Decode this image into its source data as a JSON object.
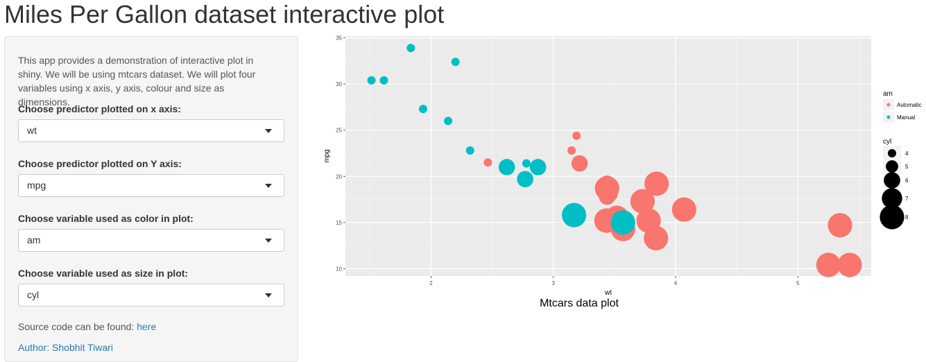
{
  "page": {
    "title": "Miles Per Gallon dataset interactive plot"
  },
  "sidebar": {
    "intro": "This app provides a demonstration of interactive plot in shiny. We will be using mtcars dataset. We will plot four variables using x axis, y axis, colour and size as dimensions.",
    "controls": [
      {
        "label": "Choose predictor plotted on x axis:",
        "value": "wt"
      },
      {
        "label": "Choose predictor plotted on Y axis:",
        "value": "mpg"
      },
      {
        "label": "Choose variable used as color in plot:",
        "value": "am"
      },
      {
        "label": "Choose variable used as size in plot:",
        "value": "cyl"
      }
    ],
    "source_text": "Source code can be found:",
    "source_link": "here",
    "author": "Author: Shobhit Tiwari"
  },
  "colors": {
    "automatic": "#F8766D",
    "manual": "#00BFC4",
    "panel": "#EBEBEB",
    "link": "#2a7ab0"
  },
  "chart_data": {
    "type": "scatter",
    "title": "Mtcars data plot",
    "xlabel": "wt",
    "ylabel": "mpg",
    "xlim": [
      1.3,
      5.6
    ],
    "ylim": [
      9.2,
      35.2
    ],
    "xticks": [
      "2",
      "3",
      "4",
      "5"
    ],
    "yticks": [
      "10",
      "15",
      "20",
      "25",
      "30",
      "35"
    ],
    "grid": true,
    "legend_placement": "right",
    "color_legend": {
      "title": "am",
      "entries": [
        "Automatic",
        "Manual"
      ]
    },
    "size_legend": {
      "title": "cyl",
      "entries": [
        "4",
        "5",
        "6",
        "7",
        "8"
      ]
    },
    "series": [
      {
        "name": "Automatic",
        "points": [
          {
            "x": 3.215,
            "y": 21.4,
            "cyl": 6
          },
          {
            "x": 3.44,
            "y": 18.7,
            "cyl": 8
          },
          {
            "x": 3.46,
            "y": 18.1,
            "cyl": 6
          },
          {
            "x": 3.57,
            "y": 14.3,
            "cyl": 8
          },
          {
            "x": 3.19,
            "y": 24.4,
            "cyl": 4
          },
          {
            "x": 3.15,
            "y": 22.8,
            "cyl": 4
          },
          {
            "x": 3.44,
            "y": 19.2,
            "cyl": 6
          },
          {
            "x": 3.44,
            "y": 17.8,
            "cyl": 6
          },
          {
            "x": 4.07,
            "y": 16.4,
            "cyl": 8
          },
          {
            "x": 3.73,
            "y": 17.3,
            "cyl": 8
          },
          {
            "x": 3.78,
            "y": 15.2,
            "cyl": 8
          },
          {
            "x": 5.25,
            "y": 10.4,
            "cyl": 8
          },
          {
            "x": 5.424,
            "y": 10.4,
            "cyl": 8
          },
          {
            "x": 5.345,
            "y": 14.7,
            "cyl": 8
          },
          {
            "x": 2.465,
            "y": 21.5,
            "cyl": 4
          },
          {
            "x": 3.52,
            "y": 15.5,
            "cyl": 8
          },
          {
            "x": 3.435,
            "y": 15.2,
            "cyl": 8
          },
          {
            "x": 3.84,
            "y": 13.3,
            "cyl": 8
          },
          {
            "x": 3.845,
            "y": 19.2,
            "cyl": 8
          }
        ]
      },
      {
        "name": "Manual",
        "points": [
          {
            "x": 2.62,
            "y": 21.0,
            "cyl": 6
          },
          {
            "x": 2.875,
            "y": 21.0,
            "cyl": 6
          },
          {
            "x": 2.32,
            "y": 22.8,
            "cyl": 4
          },
          {
            "x": 2.2,
            "y": 32.4,
            "cyl": 4
          },
          {
            "x": 1.615,
            "y": 30.4,
            "cyl": 4
          },
          {
            "x": 1.835,
            "y": 33.9,
            "cyl": 4
          },
          {
            "x": 1.935,
            "y": 27.3,
            "cyl": 4
          },
          {
            "x": 2.14,
            "y": 26.0,
            "cyl": 4
          },
          {
            "x": 1.513,
            "y": 30.4,
            "cyl": 4
          },
          {
            "x": 3.17,
            "y": 15.8,
            "cyl": 8
          },
          {
            "x": 2.77,
            "y": 19.7,
            "cyl": 6
          },
          {
            "x": 3.57,
            "y": 15.0,
            "cyl": 8
          },
          {
            "x": 2.78,
            "y": 21.4,
            "cyl": 4
          }
        ]
      }
    ]
  }
}
